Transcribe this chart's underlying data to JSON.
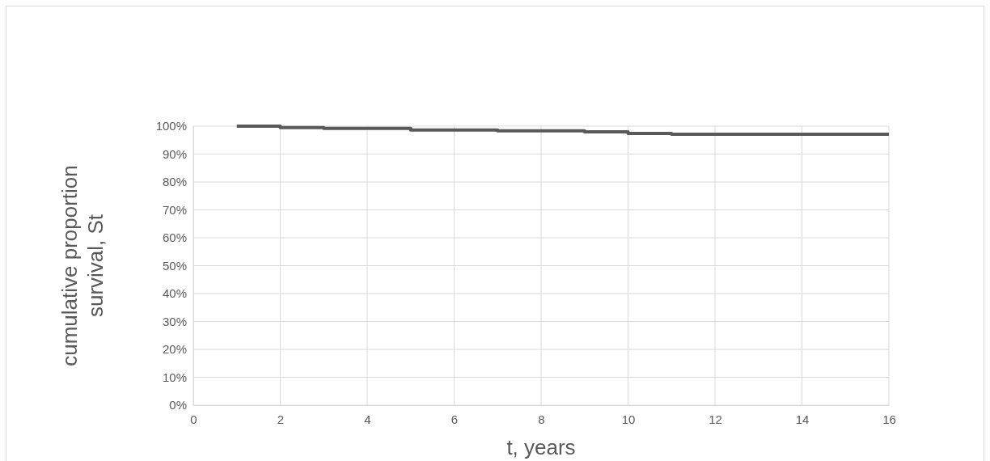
{
  "chart_data": {
    "type": "step",
    "xlabel": "t, years",
    "ylabel": "cumulative proportion survival, St",
    "x": [
      1,
      2,
      3,
      5,
      7,
      9,
      10,
      11,
      16
    ],
    "series": [
      {
        "color": "#595959",
        "values": [
          100,
          99.5,
          99.2,
          98.6,
          98.3,
          98.0,
          97.4,
          97.1,
          97.1
        ]
      }
    ],
    "xlim": [
      0,
      16
    ],
    "xticks": [
      0,
      2,
      4,
      6,
      8,
      10,
      12,
      14,
      16
    ],
    "ylim": [
      0,
      100
    ],
    "yticks": [
      {
        "value": 0,
        "label": "0%"
      },
      {
        "value": 10,
        "label": "10%"
      },
      {
        "value": 20,
        "label": "20%"
      },
      {
        "value": 30,
        "label": "30%"
      },
      {
        "value": 40,
        "label": "40%"
      },
      {
        "value": 50,
        "label": "50%"
      },
      {
        "value": 60,
        "label": "60%"
      },
      {
        "value": 70,
        "label": "70%"
      },
      {
        "value": 80,
        "label": "80%"
      },
      {
        "value": 90,
        "label": "90%"
      },
      {
        "value": 100,
        "label": "100%"
      }
    ],
    "grid": true,
    "marker": "none",
    "line_style": "solid"
  }
}
